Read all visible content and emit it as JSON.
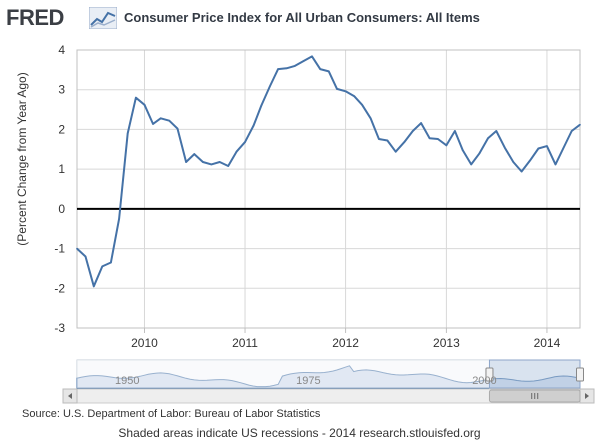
{
  "header": {
    "logo_text": "FRED",
    "title": "Consumer Price Index for All Urban Consumers: All Items"
  },
  "chart_data": {
    "type": "line",
    "title": "Consumer Price Index for All Urban Consumers: All Items",
    "ylabel": "(Percent Change from Year Ago)",
    "xlabel": "",
    "ylim": [
      -3,
      4
    ],
    "xlim": [
      "2009-05-01",
      "2014-05-01"
    ],
    "yticks": [
      -3,
      -2,
      -1,
      0,
      1,
      2,
      3,
      4
    ],
    "xticks": [
      {
        "label": "2010",
        "date": "2010-01-01"
      },
      {
        "label": "2011",
        "date": "2011-01-01"
      },
      {
        "label": "2012",
        "date": "2012-01-01"
      },
      {
        "label": "2013",
        "date": "2013-01-01"
      },
      {
        "label": "2014",
        "date": "2014-01-01"
      }
    ],
    "grid": true,
    "series": [
      {
        "color": "#4572a7",
        "points": [
          [
            "2009-05-01",
            -1.0
          ],
          [
            "2009-06-01",
            -1.2
          ],
          [
            "2009-07-01",
            -1.95
          ],
          [
            "2009-08-01",
            -1.45
          ],
          [
            "2009-09-01",
            -1.35
          ],
          [
            "2009-10-01",
            -0.25
          ],
          [
            "2009-11-01",
            1.9
          ],
          [
            "2009-12-01",
            2.8
          ],
          [
            "2010-01-01",
            2.62
          ],
          [
            "2010-02-01",
            2.14
          ],
          [
            "2010-03-01",
            2.28
          ],
          [
            "2010-04-01",
            2.22
          ],
          [
            "2010-05-01",
            2.02
          ],
          [
            "2010-06-01",
            1.18
          ],
          [
            "2010-07-01",
            1.38
          ],
          [
            "2010-08-01",
            1.18
          ],
          [
            "2010-09-01",
            1.12
          ],
          [
            "2010-10-01",
            1.18
          ],
          [
            "2010-11-01",
            1.08
          ],
          [
            "2010-12-01",
            1.44
          ],
          [
            "2011-01-01",
            1.68
          ],
          [
            "2011-02-01",
            2.1
          ],
          [
            "2011-03-01",
            2.6
          ],
          [
            "2011-04-01",
            3.08
          ],
          [
            "2011-05-01",
            3.52
          ],
          [
            "2011-06-01",
            3.54
          ],
          [
            "2011-07-01",
            3.6
          ],
          [
            "2011-08-01",
            3.72
          ],
          [
            "2011-09-01",
            3.84
          ],
          [
            "2011-10-01",
            3.52
          ],
          [
            "2011-11-01",
            3.46
          ],
          [
            "2011-12-01",
            3.02
          ],
          [
            "2012-01-01",
            2.96
          ],
          [
            "2012-02-01",
            2.84
          ],
          [
            "2012-03-01",
            2.62
          ],
          [
            "2012-04-01",
            2.28
          ],
          [
            "2012-05-01",
            1.76
          ],
          [
            "2012-06-01",
            1.72
          ],
          [
            "2012-07-01",
            1.44
          ],
          [
            "2012-08-01",
            1.68
          ],
          [
            "2012-09-01",
            1.96
          ],
          [
            "2012-10-01",
            2.16
          ],
          [
            "2012-11-01",
            1.78
          ],
          [
            "2012-12-01",
            1.76
          ],
          [
            "2013-01-01",
            1.6
          ],
          [
            "2013-02-01",
            1.96
          ],
          [
            "2013-03-01",
            1.48
          ],
          [
            "2013-04-01",
            1.12
          ],
          [
            "2013-05-01",
            1.4
          ],
          [
            "2013-06-01",
            1.78
          ],
          [
            "2013-07-01",
            1.96
          ],
          [
            "2013-08-01",
            1.54
          ],
          [
            "2013-09-01",
            1.18
          ],
          [
            "2013-10-01",
            0.94
          ],
          [
            "2013-11-01",
            1.22
          ],
          [
            "2013-12-01",
            1.52
          ],
          [
            "2014-01-01",
            1.58
          ],
          [
            "2014-02-01",
            1.12
          ],
          [
            "2014-03-01",
            1.52
          ],
          [
            "2014-04-01",
            1.96
          ],
          [
            "2014-05-01",
            2.12
          ]
        ]
      }
    ]
  },
  "navigator": {
    "labels": [
      "1950",
      "1975",
      "2000"
    ],
    "range_start_fraction": 0.82,
    "range_end_fraction": 1.0
  },
  "footer": {
    "source": "Source: U.S. Department of Labor: Bureau of Labor Statistics",
    "note": "Shaded areas indicate US recessions - 2014 research.stlouisfed.org"
  },
  "colors": {
    "series": "#4572a7",
    "zero_line": "#000000",
    "grid": "#d8d8d8",
    "navigator_fill": "#c8d6ea",
    "navigator_selected": "#b9cbe3"
  }
}
